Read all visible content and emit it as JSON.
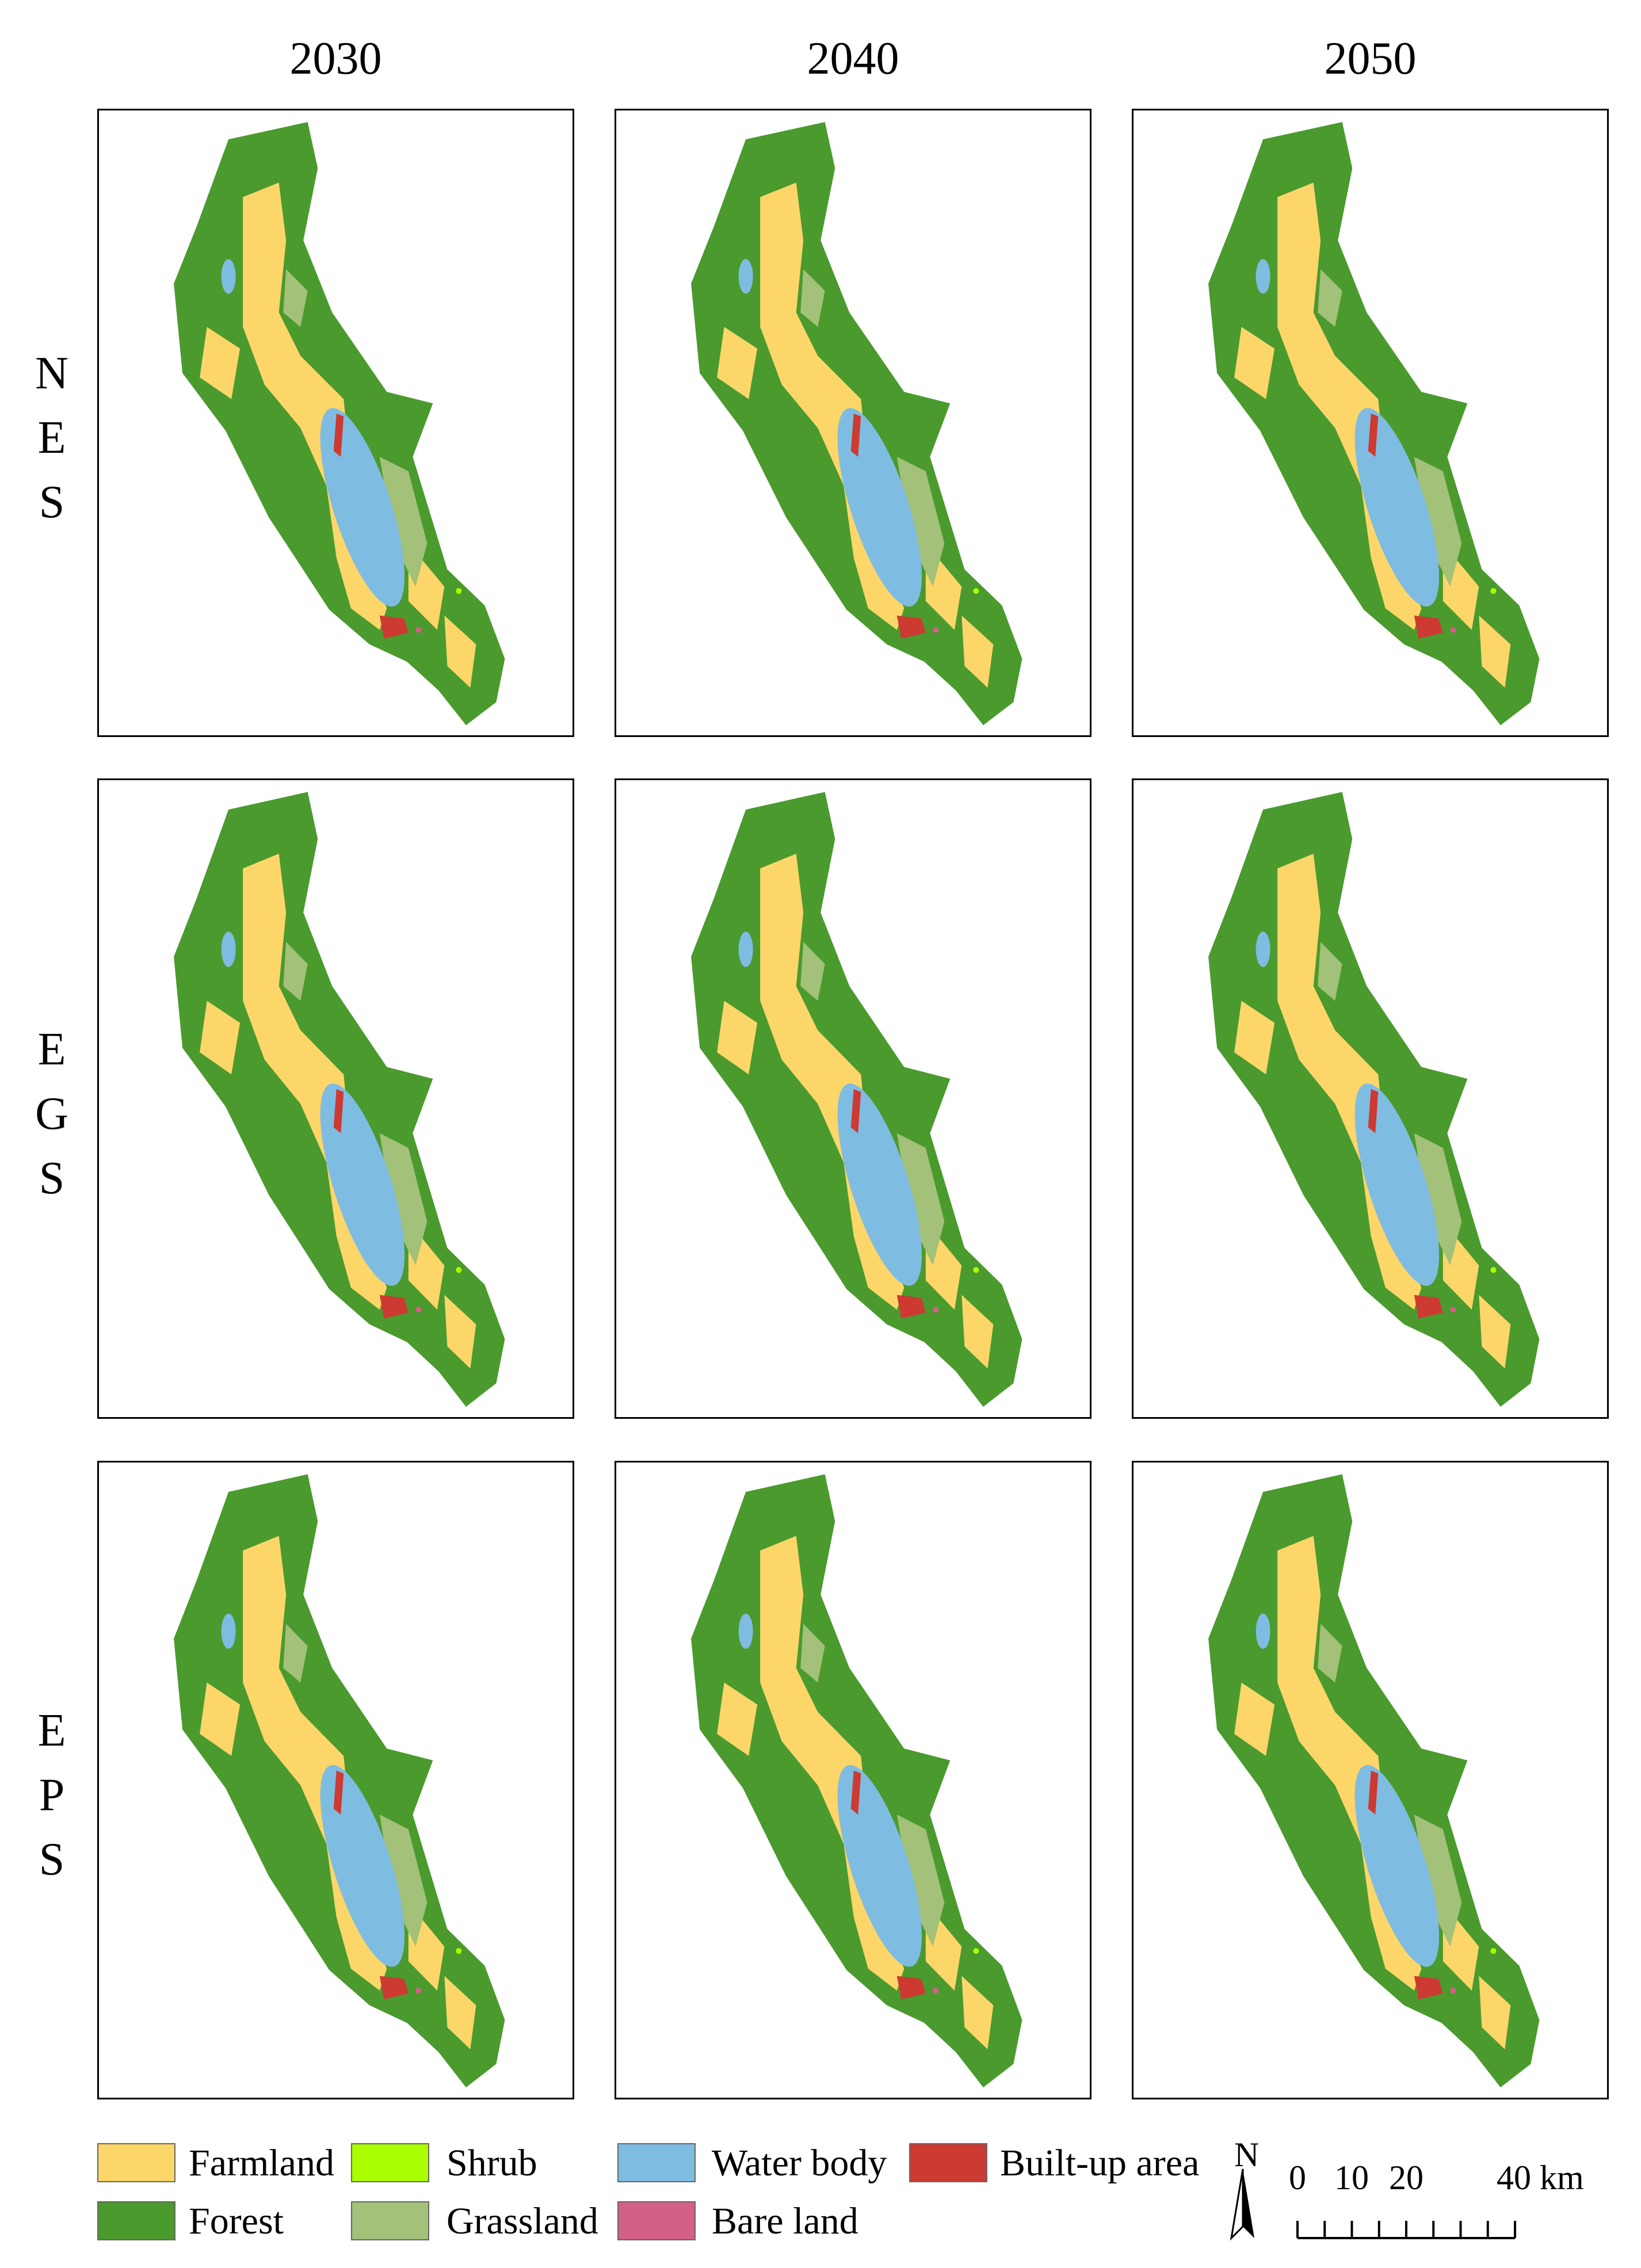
{
  "columns": [
    "2030",
    "2040",
    "2050"
  ],
  "rows": [
    "NES",
    "EGS",
    "EPS"
  ],
  "legend": [
    {
      "name": "Farmland",
      "color": "#fdd66a"
    },
    {
      "name": "Shrub",
      "color": "#aaff00"
    },
    {
      "name": "Water body",
      "color": "#7fbce1"
    },
    {
      "name": "Built-up area",
      "color": "#cc3a31"
    },
    {
      "name": "Forest",
      "color": "#4a9a2e"
    },
    {
      "name": "Grassland",
      "color": "#a3c178"
    },
    {
      "name": "Bare land",
      "color": "#d4608a"
    }
  ],
  "north_arrow": "N",
  "scale_bar": {
    "labels": [
      "0",
      "10",
      "20",
      "40 km"
    ]
  }
}
